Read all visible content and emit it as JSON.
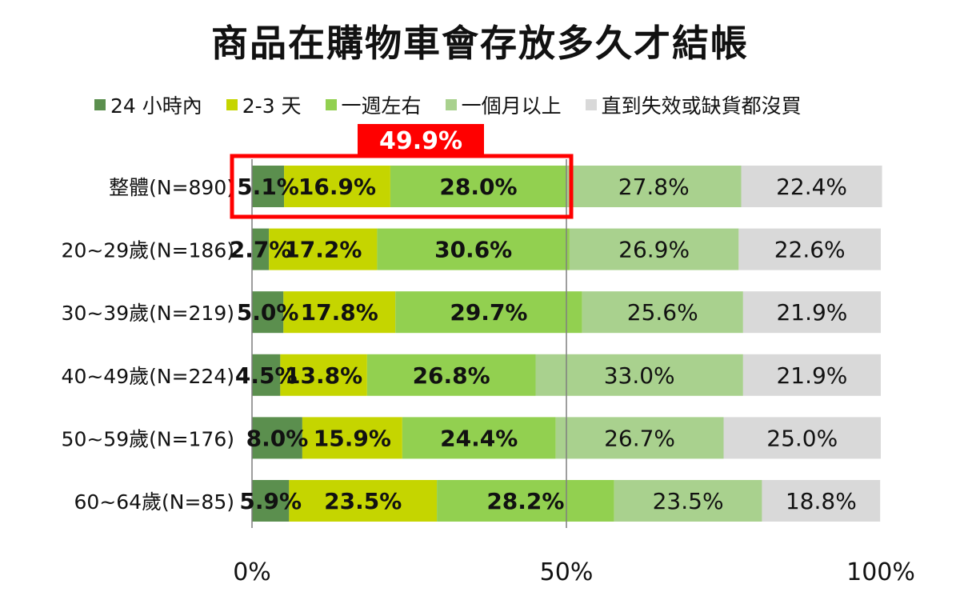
{
  "chart_data": {
    "type": "bar",
    "orientation": "horizontal",
    "stacked": true,
    "title": "商品在購物車會存放多久才結帳",
    "categories": [
      "整體(N=890)",
      "20~29歲(N=186)",
      "30~39歲(N=219)",
      "40~49歲(N=224)",
      "50~59歲(N=176)",
      "60~64歲(N=85)"
    ],
    "series": [
      {
        "name": "24 小時內",
        "color": "#5b8f4e",
        "label_bold": true,
        "values": [
          5.1,
          2.7,
          5.0,
          4.5,
          8.0,
          5.9
        ],
        "labels": [
          "5.1%",
          "2.7%",
          "5.0%",
          "4.5%",
          "8.0%",
          "5.9%"
        ]
      },
      {
        "name": "2-3 天",
        "color": "#c5d500",
        "label_bold": true,
        "values": [
          16.9,
          17.2,
          17.8,
          13.8,
          15.9,
          23.5
        ],
        "labels": [
          "16.9%",
          "17.2%",
          "17.8%",
          "13.8%",
          "15.9%",
          "23.5%"
        ]
      },
      {
        "name": "一週左右",
        "color": "#92d050",
        "label_bold": true,
        "values": [
          28.0,
          30.6,
          29.7,
          26.8,
          24.4,
          28.2
        ],
        "labels": [
          "28.0%",
          "30.6%",
          "29.7%",
          "26.8%",
          "24.4%",
          "28.2%"
        ]
      },
      {
        "name": "一個月以上",
        "color": "#a9d18e",
        "label_bold": false,
        "values": [
          27.8,
          26.9,
          25.6,
          33.0,
          26.7,
          23.5
        ],
        "labels": [
          "27.8%",
          "26.9%",
          "25.6%",
          "33.0%",
          "26.7%",
          "23.5%"
        ]
      },
      {
        "name": "直到失效或缺貨都沒買",
        "color": "#d9d9d9",
        "label_bold": false,
        "values": [
          22.4,
          22.6,
          21.9,
          21.9,
          25.0,
          18.8
        ],
        "labels": [
          "22.4%",
          "22.6%",
          "21.9%",
          "21.9%",
          "25.0%",
          "18.8%"
        ]
      }
    ],
    "x_ticks": [
      "0%",
      "50%",
      "100%"
    ],
    "xlim": [
      0,
      100
    ],
    "gridlines": [
      50
    ],
    "legend_position": "top",
    "annotation": {
      "text": "49.9%",
      "category_index": 0,
      "spans_series": 3,
      "color": "#ff0000"
    }
  }
}
